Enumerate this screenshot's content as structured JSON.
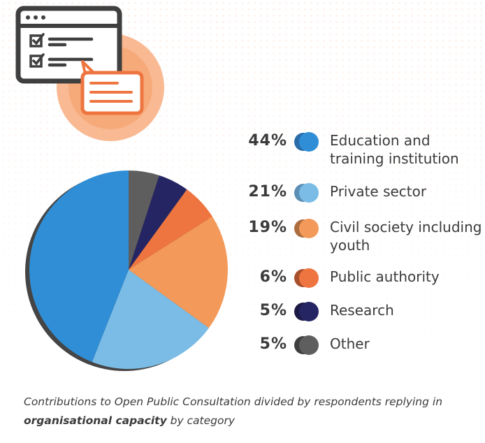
{
  "chart_data": {
    "type": "pie",
    "categories": [
      "Education and training institution",
      "Private sector",
      "Civil society including youth",
      "Public authority",
      "Research",
      "Other"
    ],
    "values": [
      44,
      21,
      19,
      6,
      5,
      5
    ],
    "value_labels": [
      "44%",
      "21%",
      "19%",
      "6%",
      "5%",
      "5%"
    ],
    "legend_position": "right",
    "title": "",
    "colors": [
      "#2f8ed6",
      "#7bbce6",
      "#f39a5a",
      "#ee7540",
      "#262563",
      "#5e5e5e"
    ],
    "edge_colors": [
      "#2a6ca8",
      "#5b8fb5",
      "#ad6c3e",
      "#a8502c",
      "#1b1a45",
      "#3e3e3e"
    ]
  },
  "caption": {
    "part1": "Contributions to Open Public Consultation divided by respondents replying in ",
    "bold": "organisational capacity",
    "part2": " by category"
  },
  "illustration": {
    "icon": "survey-checklist-icon",
    "colors": {
      "frame": "#3f3f3f",
      "accent": "#ee7540",
      "circle": "#f8ad80"
    }
  }
}
